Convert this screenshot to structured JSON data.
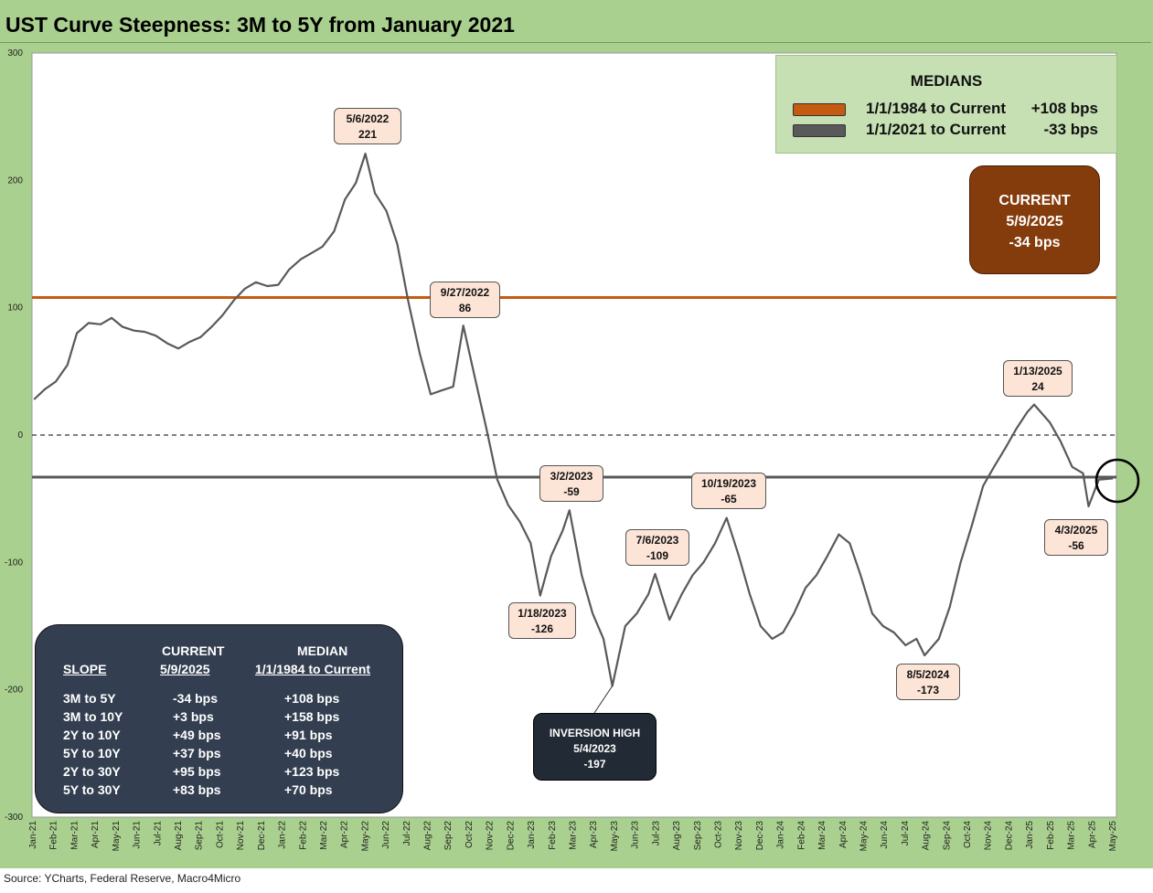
{
  "title": "UST Curve Steepness: 3M to 5Y from January 2021",
  "source": "Source: YCharts, Federal Reserve, Macro4Micro",
  "colors": {
    "background": "#a9d08e",
    "plot_area": "#ffffff",
    "series_line": "#595959",
    "median_1984": "#c55a11",
    "median_2021": "#595959",
    "current_box": "#843c0c",
    "slope_box": "#333f50",
    "inversion_box": "#222a35",
    "annotation_box": "#fce4d6"
  },
  "legend": {
    "header": "MEDIANS",
    "items": [
      {
        "label": "1/1/1984 to Current",
        "value": "+108 bps",
        "color": "#c55a11"
      },
      {
        "label": "1/1/2021 to Current",
        "value": "-33 bps",
        "color": "#595959"
      }
    ]
  },
  "current_box": {
    "label": "CURRENT",
    "date": "5/9/2025",
    "value": "-34 bps"
  },
  "inversion_box": {
    "label": "INVERSION HIGH",
    "date": "5/4/2023",
    "value": "-197"
  },
  "slope_table": {
    "col1_header": "SLOPE",
    "col2_header_line1": "CURRENT",
    "col2_header_line2": "5/9/2025",
    "col3_header_line1": "MEDIAN",
    "col3_header_line2": "1/1/1984 to Current",
    "rows": [
      {
        "slope": "3M to 5Y",
        "current": "-34 bps",
        "median": "+108 bps"
      },
      {
        "slope": "3M to 10Y",
        "current": "+3 bps",
        "median": "+158 bps"
      },
      {
        "slope": "2Y to 10Y",
        "current": "+49 bps",
        "median": "+91 bps"
      },
      {
        "slope": "5Y to 10Y",
        "current": "+37 bps",
        "median": "+40 bps"
      },
      {
        "slope": "2Y to 30Y",
        "current": "+95 bps",
        "median": "+123 bps"
      },
      {
        "slope": "5Y to 30Y",
        "current": "+83 bps",
        "median": "+70 bps"
      }
    ]
  },
  "chart_data": {
    "type": "line",
    "title": "UST Curve Steepness: 3M to 5Y from January 2021",
    "xlabel": "",
    "ylabel": "",
    "ylim": [
      -300,
      300
    ],
    "yticks": [
      300,
      200,
      100,
      0,
      -100,
      -200,
      -300
    ],
    "grid": false,
    "legend_position": "top-right",
    "xtick_labels": [
      "Jan-21",
      "Feb-21",
      "Mar-21",
      "Apr-21",
      "May-21",
      "Jun-21",
      "Jul-21",
      "Aug-21",
      "Sep-21",
      "Oct-21",
      "Nov-21",
      "Dec-21",
      "Jan-22",
      "Feb-22",
      "Mar-22",
      "Apr-22",
      "May-22",
      "Jun-22",
      "Jul-22",
      "Aug-22",
      "Sep-22",
      "Oct-22",
      "Nov-22",
      "Dec-22",
      "Jan-23",
      "Feb-23",
      "Mar-23",
      "Apr-23",
      "May-23",
      "Jun-23",
      "Jul-23",
      "Aug-23",
      "Sep-23",
      "Oct-23",
      "Nov-23",
      "Dec-23",
      "Jan-24",
      "Feb-24",
      "Mar-24",
      "Apr-24",
      "May-24",
      "Jun-24",
      "Jul-24",
      "Aug-24",
      "Sep-24",
      "Oct-24",
      "Nov-24",
      "Dec-24",
      "Jan-25",
      "Feb-25",
      "Mar-25",
      "Apr-25",
      "May-25"
    ],
    "reference_lines": [
      {
        "name": "1/1/1984 to Current",
        "value": 108
      },
      {
        "name": "1/1/2021 to Current",
        "value": -33
      },
      {
        "name": "zero",
        "value": 0
      }
    ],
    "series": [
      {
        "x": [
          "2021-01-04",
          "2021-01-20",
          "2021-02-05",
          "2021-02-22",
          "2021-03-08",
          "2021-03-25",
          "2021-04-12",
          "2021-04-28",
          "2021-05-14",
          "2021-05-31",
          "2021-06-16",
          "2021-07-02",
          "2021-07-19",
          "2021-08-04",
          "2021-08-20",
          "2021-09-06",
          "2021-09-22",
          "2021-10-08",
          "2021-10-25",
          "2021-11-10",
          "2021-11-26",
          "2021-12-13",
          "2021-12-29",
          "2022-01-14",
          "2022-01-31",
          "2022-02-16",
          "2022-03-04",
          "2022-03-21",
          "2022-04-06",
          "2022-04-22",
          "2022-05-06",
          "2022-05-20",
          "2022-06-06",
          "2022-06-22",
          "2022-07-08",
          "2022-07-25",
          "2022-08-10",
          "2022-08-26",
          "2022-09-12",
          "2022-09-27",
          "2022-10-14",
          "2022-10-31",
          "2022-11-16",
          "2022-12-02",
          "2022-12-19",
          "2023-01-04",
          "2023-01-18",
          "2023-02-03",
          "2023-02-20",
          "2023-03-02",
          "2023-03-20",
          "2023-04-05",
          "2023-04-21",
          "2023-05-04",
          "2023-05-23",
          "2023-06-09",
          "2023-06-26",
          "2023-07-06",
          "2023-07-27",
          "2023-08-14",
          "2023-08-30",
          "2023-09-15",
          "2023-10-02",
          "2023-10-19",
          "2023-11-06",
          "2023-11-22",
          "2023-12-08",
          "2023-12-25",
          "2024-01-10",
          "2024-01-26",
          "2024-02-12",
          "2024-02-28",
          "2024-03-15",
          "2024-04-01",
          "2024-04-17",
          "2024-05-03",
          "2024-05-20",
          "2024-06-05",
          "2024-06-21",
          "2024-07-08",
          "2024-07-24",
          "2024-08-05",
          "2024-08-26",
          "2024-09-11",
          "2024-09-27",
          "2024-10-14",
          "2024-10-30",
          "2024-11-15",
          "2024-12-02",
          "2024-12-18",
          "2025-01-03",
          "2025-01-13",
          "2025-02-05",
          "2025-02-21",
          "2025-03-10",
          "2025-03-26",
          "2025-04-03",
          "2025-04-18",
          "2025-05-09"
        ],
        "values": [
          28,
          36,
          42,
          55,
          80,
          88,
          87,
          92,
          85,
          82,
          81,
          78,
          72,
          68,
          73,
          77,
          85,
          94,
          106,
          115,
          120,
          117,
          118,
          130,
          138,
          143,
          148,
          160,
          185,
          198,
          221,
          190,
          176,
          150,
          105,
          64,
          32,
          35,
          38,
          86,
          45,
          5,
          -35,
          -55,
          -68,
          -85,
          -126,
          -95,
          -75,
          -59,
          -110,
          -140,
          -160,
          -197,
          -150,
          -140,
          -125,
          -109,
          -145,
          -125,
          -110,
          -100,
          -85,
          -65,
          -95,
          -125,
          -150,
          -160,
          -155,
          -140,
          -120,
          -110,
          -95,
          -78,
          -85,
          -110,
          -140,
          -150,
          -155,
          -165,
          -160,
          -173,
          -160,
          -135,
          -100,
          -70,
          -40,
          -25,
          -10,
          5,
          18,
          24,
          10,
          -5,
          -25,
          -30,
          -56,
          -35,
          -34
        ]
      }
    ],
    "annotations": [
      {
        "date": "5/6/2022",
        "value": "221"
      },
      {
        "date": "9/27/2022",
        "value": "86"
      },
      {
        "date": "1/18/2023",
        "value": "-126"
      },
      {
        "date": "3/2/2023",
        "value": "-59"
      },
      {
        "date": "7/6/2023",
        "value": "-109"
      },
      {
        "date": "10/19/2023",
        "value": "-65"
      },
      {
        "date": "8/5/2024",
        "value": "-173"
      },
      {
        "date": "1/13/2025",
        "value": "24"
      },
      {
        "date": "4/3/2025",
        "value": "-56"
      }
    ]
  }
}
